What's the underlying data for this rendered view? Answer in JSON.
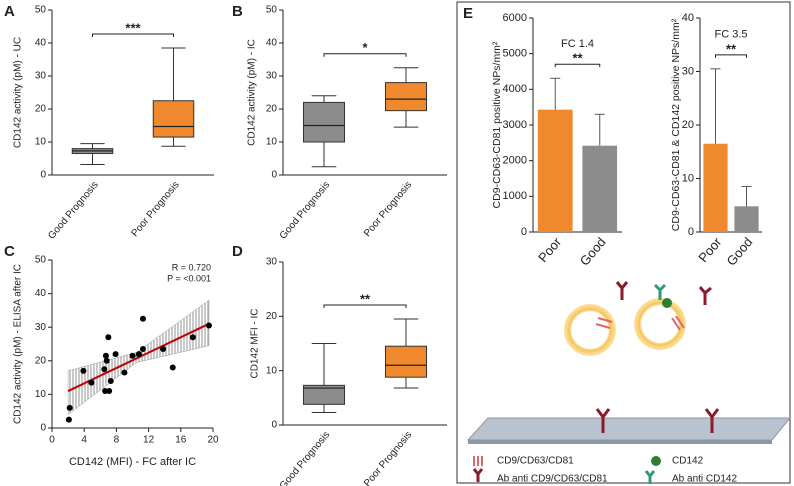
{
  "chart_data": [
    {
      "type": "box",
      "label": "A",
      "ylabel": "CD142 activity (pM) - UC",
      "categories": [
        "Good Prognosis",
        "Poor Prognosis"
      ],
      "colors": [
        "#8c8c8c",
        "#f0892d"
      ],
      "boxes": [
        [
          3.2,
          6.5,
          7.3,
          8,
          9.5
        ],
        [
          8.7,
          11.5,
          14.7,
          22.5,
          38.5
        ]
      ],
      "ylim": [
        0,
        50
      ],
      "yticks": [
        0,
        10,
        20,
        30,
        40,
        50
      ],
      "significance": "***"
    },
    {
      "type": "box",
      "label": "B",
      "ylabel": "CD142 activity (pM) - IC",
      "categories": [
        "Good Prognosis",
        "Poor Prognosis"
      ],
      "colors": [
        "#8c8c8c",
        "#f0892d"
      ],
      "boxes": [
        [
          2.5,
          10,
          15,
          22,
          24
        ],
        [
          14.5,
          19.5,
          23,
          28,
          32.5
        ]
      ],
      "ylim": [
        0,
        50
      ],
      "yticks": [
        0,
        10,
        20,
        30,
        40,
        50
      ],
      "significance": "*"
    },
    {
      "type": "scatter",
      "label": "C",
      "xlabel": "CD142 (MFI) - FC after IC",
      "ylabel": "CD142 activity (pM) - ELISA after IC",
      "x": [
        2.1,
        2.2,
        3.9,
        4.9,
        6.5,
        6.8,
        6.7,
        7,
        6.6,
        7.1,
        7.3,
        7.9,
        9,
        10,
        10.8,
        11.3,
        11.3,
        13.8,
        15,
        17.5,
        19.5
      ],
      "y": [
        2.5,
        6,
        17,
        13.5,
        17.5,
        20,
        21.5,
        27,
        11,
        11,
        14,
        22,
        16.5,
        21.5,
        22,
        23.5,
        32.5,
        23.5,
        18,
        27,
        30.5
      ],
      "color": "#000000",
      "fit": {
        "x": [
          2,
          19.5
        ],
        "y": [
          11,
          31
        ],
        "color": "#c00000"
      },
      "band": {
        "x": [
          2,
          10.5,
          19.5
        ],
        "lower": [
          4,
          19.5,
          24.5
        ],
        "upper": [
          17,
          22.5,
          38
        ]
      },
      "xlim": [
        0,
        20
      ],
      "xticks": [
        0,
        4,
        8,
        12,
        16,
        20
      ],
      "ylim": [
        0,
        50
      ],
      "yticks": [
        0,
        10,
        20,
        30,
        40,
        50
      ],
      "annotations": [
        "R = 0.720",
        "P = <0.001"
      ]
    },
    {
      "type": "box",
      "label": "D",
      "ylabel": "CD142 MFI - IC",
      "categories": [
        "Good Prognosis",
        "Poor Prognosis"
      ],
      "colors": [
        "#8c8c8c",
        "#f0892d"
      ],
      "boxes": [
        [
          2.3,
          3.8,
          6.8,
          7.3,
          15
        ],
        [
          6.8,
          8.8,
          11,
          14.5,
          19.5
        ]
      ],
      "ylim": [
        0,
        30
      ],
      "yticks": [
        0,
        10,
        20,
        30
      ],
      "significance": "**"
    },
    {
      "type": "bar",
      "label": "E",
      "ylabel": "CD9-CD63-CD81 positive NPs/mm²",
      "categories": [
        "Poor",
        "Good"
      ],
      "colors": [
        "#f0892d",
        "#8c8c8c"
      ],
      "values": [
        3430,
        2420
      ],
      "errors": [
        880,
        880
      ],
      "ylim": [
        0,
        6000
      ],
      "yticks": [
        0,
        1000,
        2000,
        3000,
        4000,
        5000,
        6000
      ],
      "fc": "FC 1.4",
      "significance": "**"
    },
    {
      "type": "bar",
      "ylabel": "CD9-CD63-CD81 & CD142 positive NPs/mm²",
      "categories": [
        "Poor",
        "Good"
      ],
      "colors": [
        "#f0892d",
        "#8c8c8c"
      ],
      "values": [
        16.5,
        4.8
      ],
      "errors": [
        14,
        3.7
      ],
      "ylim": [
        0,
        40
      ],
      "yticks": [
        0,
        10,
        20,
        30,
        40
      ],
      "fc": "FC 3.5",
      "significance": "**"
    }
  ],
  "schematic": {
    "legend": [
      "CD9/CD63/CD81",
      "CD142",
      "Ab anti CD9/CD63/CD81",
      "Ab anti CD142"
    ]
  }
}
